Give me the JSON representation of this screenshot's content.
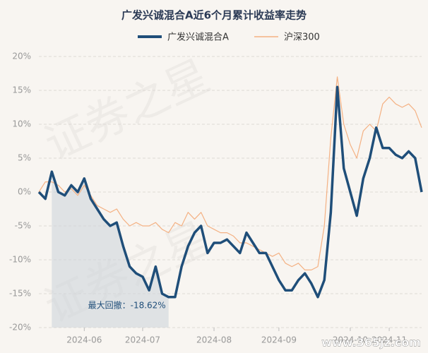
{
  "chart_data": {
    "type": "line",
    "title": "广发兴诚混合A近6个月累计收益率走势",
    "categories": [
      null,
      null,
      null,
      null,
      null,
      null,
      null,
      "2024-06",
      null,
      null,
      null,
      null,
      null,
      null,
      null,
      null,
      "2024-07",
      null,
      null,
      null,
      null,
      null,
      null,
      null,
      null,
      null,
      null,
      "2024-08",
      null,
      null,
      null,
      null,
      null,
      null,
      null,
      null,
      null,
      "2024-09",
      null,
      null,
      null,
      null,
      null,
      null,
      null,
      null,
      null,
      null,
      "2024-10",
      null,
      null,
      null,
      null,
      null,
      "2024-11",
      null,
      null,
      null,
      null,
      null
    ],
    "series": [
      {
        "name": "广发兴诚混合A",
        "color": "#1f4e79",
        "values": [
          0,
          -1,
          3,
          0,
          -0.5,
          1,
          0,
          2,
          -1,
          -2.5,
          -4,
          -5,
          -4.5,
          -8,
          -11,
          -12,
          -12.5,
          -14.5,
          -11,
          -15,
          -15.5,
          -15.5,
          -11,
          -8,
          -6,
          -5,
          -9,
          -7.5,
          -7.5,
          -7,
          -8,
          -9,
          -6,
          -7.5,
          -9,
          -9,
          -11,
          -13,
          -14.5,
          -14.5,
          -13,
          -12,
          -13.5,
          -15.5,
          -13,
          -3,
          15.5,
          3.5,
          0,
          -3.5,
          2,
          5,
          9.5,
          6.5,
          6.5,
          5.5,
          5,
          6,
          5,
          0
        ]
      },
      {
        "name": "沪深300",
        "color": "#f4b183",
        "values": [
          0,
          1.5,
          1.5,
          1,
          0,
          0.5,
          -0.5,
          1,
          -0.5,
          -2,
          -2.5,
          -3,
          -2.5,
          -4,
          -5,
          -4.5,
          -5,
          -5,
          -4.5,
          -5.5,
          -6,
          -4.5,
          -5,
          -3,
          -4,
          -3,
          -5,
          -5.5,
          -6,
          -6,
          -6.5,
          -7.5,
          -7.5,
          -8,
          -8.5,
          -9,
          -9.5,
          -9,
          -10.5,
          -11,
          -10.5,
          -11.5,
          -11.5,
          -11,
          -5,
          8,
          17,
          10,
          7,
          5,
          9,
          10,
          9,
          13,
          14,
          13,
          12.5,
          13,
          12,
          9.5
        ]
      }
    ],
    "ylim": [
      -20,
      20
    ],
    "yticks": [
      {
        "value": -20,
        "label": "-20%"
      },
      {
        "value": -15,
        "label": "-15%"
      },
      {
        "value": -10,
        "label": "-10%"
      },
      {
        "value": -5,
        "label": "-5%"
      },
      {
        "value": 0,
        "label": "0%"
      },
      {
        "value": 5,
        "label": "5%"
      },
      {
        "value": 10,
        "label": "10%"
      },
      {
        "value": 15,
        "label": "15%"
      },
      {
        "value": 20,
        "label": "20%"
      }
    ],
    "grid": true,
    "annotation": "最大回撤：-18.62%",
    "watermarks": [
      "证券之星",
      "www.365jz.com"
    ]
  }
}
